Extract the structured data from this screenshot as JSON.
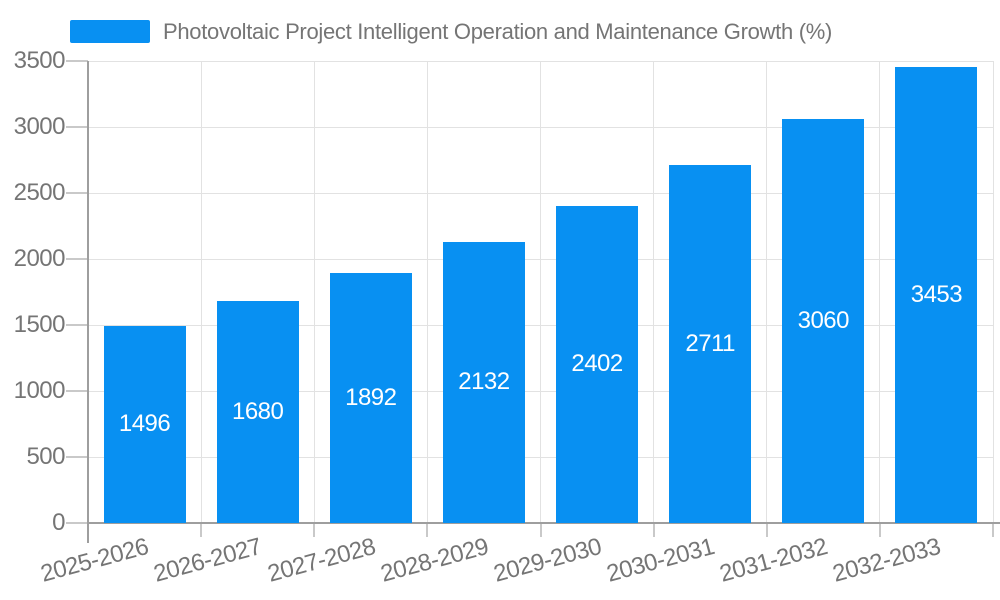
{
  "chart_data": {
    "type": "bar",
    "title": "Photovoltaic Project Intelligent Operation and Maintenance Growth (%)",
    "categories": [
      "2025-2026",
      "2026-2027",
      "2027-2028",
      "2028-2029",
      "2029-2030",
      "2030-2031",
      "2031-2032",
      "2032-2033"
    ],
    "values": [
      1496,
      1680,
      1892,
      2132,
      2402,
      2711,
      3060,
      3453
    ],
    "xlabel": "",
    "ylabel": "",
    "ylim": [
      0,
      3500
    ],
    "ytick_step": 500,
    "grid": true,
    "legend_position": "top-left",
    "colors": {
      "bar": "#0890F2",
      "value_label": "#FFFFFF",
      "axis_text": "#757575",
      "axis_line": "#9E9E9E",
      "gridline": "#E2E2E2",
      "tick": "#C9C9C9"
    }
  }
}
